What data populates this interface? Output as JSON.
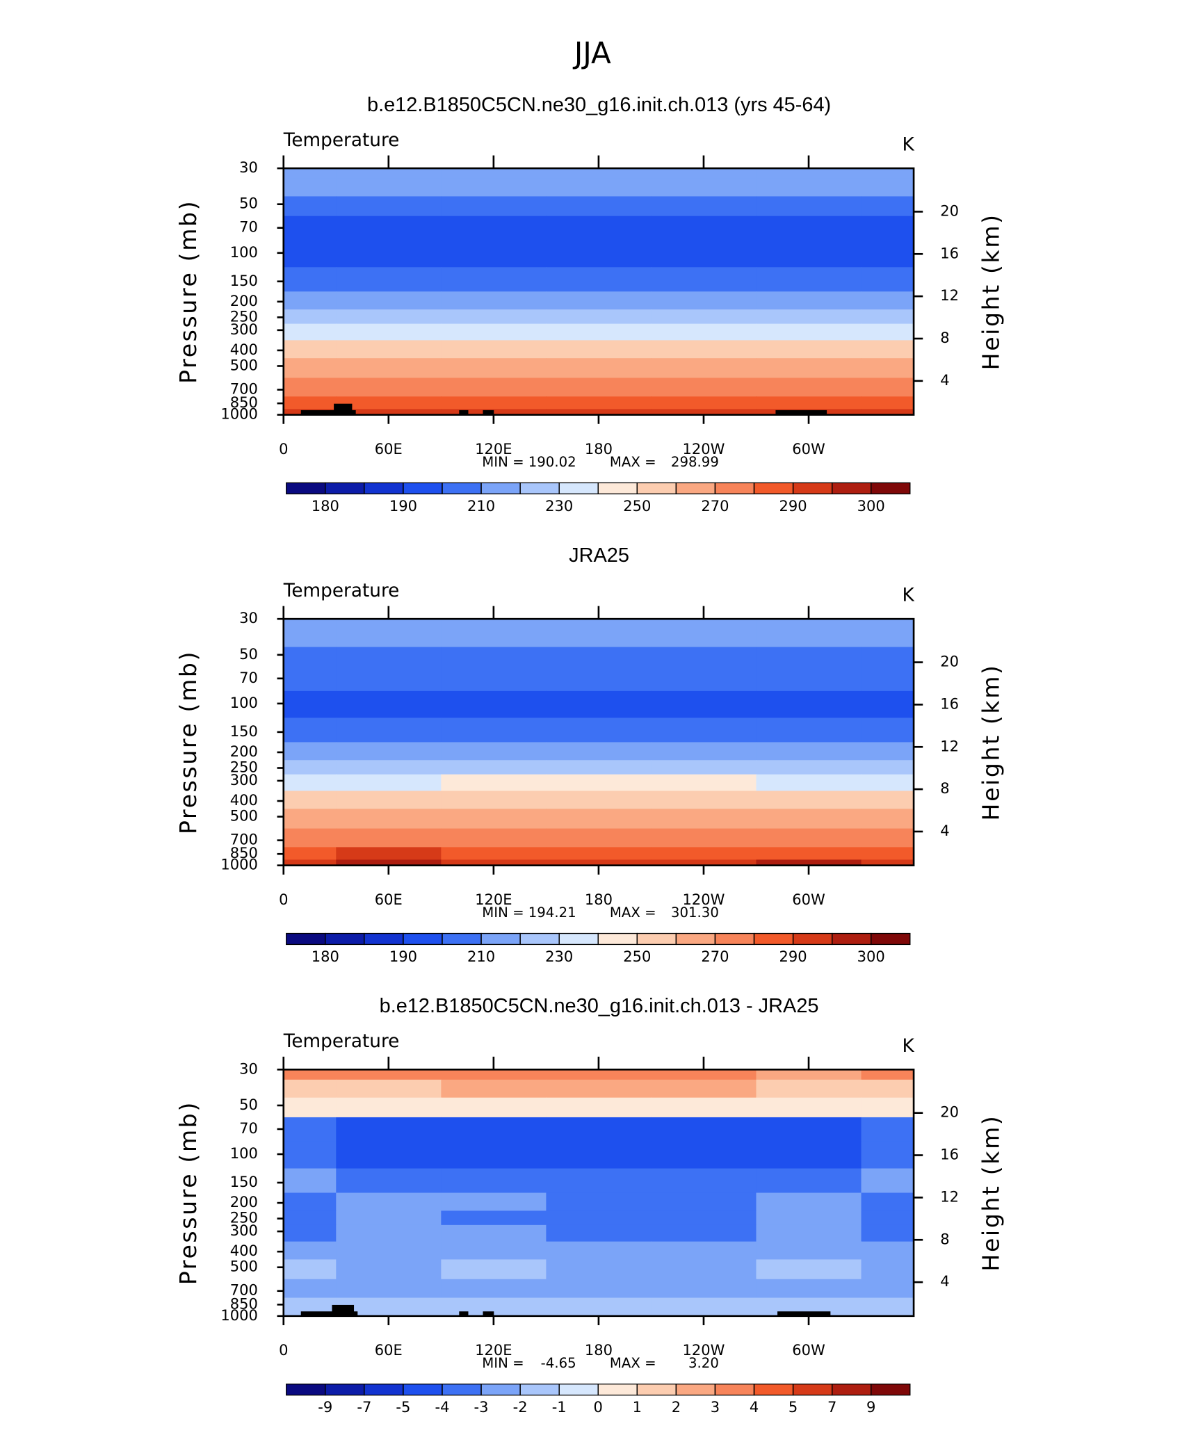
{
  "title": "JJA",
  "chart_data": [
    {
      "type": "contour",
      "title": "b.e12.B1850C5CN.ne30_g16.init.ch.013 (yrs 45-64)",
      "variable": "Temperature",
      "units": "K",
      "ylabel": "Pressure (mb)",
      "y2label": "Height (km)",
      "x": [
        0,
        60,
        120,
        180,
        240,
        300,
        360
      ],
      "y": [
        30,
        40,
        50,
        70,
        100,
        150,
        200,
        250,
        300,
        400,
        500,
        700,
        850,
        1000
      ],
      "values": [
        [
          215,
          215,
          215,
          215,
          215,
          215,
          215
        ],
        [
          212,
          212,
          212,
          212,
          212,
          212,
          212
        ],
        [
          205,
          205,
          205,
          205,
          205,
          205,
          205
        ],
        [
          197,
          197,
          197,
          197,
          197,
          197,
          197
        ],
        [
          195,
          195,
          195,
          195,
          195,
          195,
          195
        ],
        [
          203,
          203,
          203,
          203,
          203,
          203,
          203
        ],
        [
          215,
          215,
          215,
          215,
          215,
          215,
          215
        ],
        [
          228,
          228,
          228,
          228,
          228,
          228,
          228
        ],
        [
          238,
          238,
          238,
          238,
          238,
          238,
          238
        ],
        [
          253,
          253,
          253,
          253,
          253,
          253,
          253
        ],
        [
          263,
          263,
          263,
          263,
          263,
          263,
          263
        ],
        [
          278,
          279,
          278,
          278,
          278,
          278,
          278
        ],
        [
          287,
          288,
          287,
          287,
          287,
          287,
          287
        ],
        [
          293,
          294,
          293,
          293,
          293,
          293,
          293
        ]
      ],
      "xlim": [
        0,
        360
      ],
      "ylim": [
        1000,
        30
      ],
      "y_scale": "log",
      "xticks": [
        0,
        {
          "value": 60,
          "label": "60E"
        },
        {
          "value": 120,
          "label": "120E"
        },
        180,
        {
          "value": 240,
          "label": "120W"
        },
        {
          "value": 300,
          "label": "60W"
        }
      ],
      "yticks": [
        30,
        50,
        70,
        100,
        150,
        200,
        250,
        300,
        400,
        500,
        700,
        850,
        1000
      ],
      "y2lim": [
        0.8,
        24.1
      ],
      "y2ticks": [
        4,
        8,
        12,
        16,
        20
      ],
      "min_label": "MIN =",
      "min": 190.02,
      "max_label": "MAX =",
      "max": 298.99,
      "levels": [
        180,
        185,
        190,
        200,
        210,
        220,
        230,
        240,
        250,
        260,
        270,
        280,
        290,
        295,
        300
      ],
      "colorbar_ticks": [
        180,
        190,
        210,
        230,
        250,
        270,
        290,
        300
      ],
      "colors": [
        "#0a0a80",
        "#0c1ca8",
        "#1233d0",
        "#1e50ee",
        "#3d71f4",
        "#7ba4f8",
        "#a9c6fb",
        "#d6e7fd",
        "#fde9d9",
        "#fccdb0",
        "#faa882",
        "#f7845a",
        "#f25a2a",
        "#d63a18",
        "#ae1e10",
        "#7f0808"
      ]
    },
    {
      "type": "contour",
      "title": "JRA25",
      "variable": "Temperature",
      "units": "K",
      "ylabel": "Pressure (mb)",
      "y2label": "Height (km)",
      "x": [
        0,
        60,
        120,
        180,
        240,
        300,
        360
      ],
      "y": [
        30,
        40,
        50,
        70,
        100,
        150,
        200,
        250,
        300,
        400,
        500,
        700,
        850,
        1000
      ],
      "values": [
        [
          218,
          218,
          218,
          218,
          218,
          218,
          218
        ],
        [
          214,
          214,
          214,
          214,
          214,
          214,
          214
        ],
        [
          208,
          208,
          208,
          208,
          208,
          208,
          208
        ],
        [
          203,
          203,
          202,
          202,
          202,
          203,
          203
        ],
        [
          196,
          196,
          196,
          196,
          196,
          196,
          196
        ],
        [
          205,
          205,
          205,
          205,
          205,
          205,
          205
        ],
        [
          216,
          216,
          216,
          216,
          216,
          216,
          216
        ],
        [
          228,
          228,
          228,
          228,
          228,
          228,
          228
        ],
        [
          239,
          239,
          241,
          241,
          240,
          239,
          239
        ],
        [
          254,
          254,
          254,
          254,
          254,
          254,
          254
        ],
        [
          264,
          264,
          264,
          264,
          264,
          264,
          264
        ],
        [
          279,
          279,
          279,
          279,
          279,
          279,
          279
        ],
        [
          289,
          291,
          289,
          289,
          289,
          289,
          289
        ],
        [
          294,
          296,
          294,
          294,
          294,
          295,
          294
        ]
      ],
      "xlim": [
        0,
        360
      ],
      "ylim": [
        1000,
        30
      ],
      "y_scale": "log",
      "xticks": [
        0,
        {
          "value": 60,
          "label": "60E"
        },
        {
          "value": 120,
          "label": "120E"
        },
        180,
        {
          "value": 240,
          "label": "120W"
        },
        {
          "value": 300,
          "label": "60W"
        }
      ],
      "yticks": [
        30,
        50,
        70,
        100,
        150,
        200,
        250,
        300,
        400,
        500,
        700,
        850,
        1000
      ],
      "y2lim": [
        0.8,
        24.1
      ],
      "y2ticks": [
        4,
        8,
        12,
        16,
        20
      ],
      "min_label": "MIN =",
      "min": 194.21,
      "max_label": "MAX =",
      "max": {
        "value": 301.3,
        "label": "301.30"
      },
      "levels": [
        180,
        185,
        190,
        200,
        210,
        220,
        230,
        240,
        250,
        260,
        270,
        280,
        290,
        295,
        300
      ],
      "colorbar_ticks": [
        180,
        190,
        210,
        230,
        250,
        270,
        290,
        300
      ],
      "colors": [
        "#0a0a80",
        "#0c1ca8",
        "#1233d0",
        "#1e50ee",
        "#3d71f4",
        "#7ba4f8",
        "#a9c6fb",
        "#d6e7fd",
        "#fde9d9",
        "#fccdb0",
        "#faa882",
        "#f7845a",
        "#f25a2a",
        "#d63a18",
        "#ae1e10",
        "#7f0808"
      ]
    },
    {
      "type": "contour",
      "title": "b.e12.B1850C5CN.ne30_g16.init.ch.013 - JRA25",
      "variable": "Temperature",
      "units": "K",
      "ylabel": "Pressure (mb)",
      "y2label": "Height (km)",
      "x": [
        0,
        60,
        120,
        180,
        240,
        300,
        360
      ],
      "y": [
        30,
        40,
        50,
        70,
        100,
        150,
        200,
        250,
        300,
        400,
        500,
        700,
        850,
        1000
      ],
      "values": [
        [
          3.2,
          3.0,
          3.1,
          3.2,
          3.0,
          2.8,
          3.2
        ],
        [
          1.8,
          1.6,
          2.2,
          2.4,
          2.0,
          1.6,
          1.8
        ],
        [
          0.3,
          0.2,
          0.6,
          0.8,
          0.5,
          0.3,
          0.3
        ],
        [
          -3.5,
          -4.2,
          -4.3,
          -4.2,
          -4.3,
          -4.1,
          -3.5
        ],
        [
          -3.6,
          -4.4,
          -4.5,
          -4.6,
          -4.4,
          -4.3,
          -3.7
        ],
        [
          -2.6,
          -3.4,
          -3.5,
          -3.6,
          -3.4,
          -3.3,
          -2.6
        ],
        [
          -3.4,
          -2.7,
          -2.8,
          -3.3,
          -3.2,
          -2.5,
          -3.3
        ],
        [
          -3.3,
          -2.6,
          -3.4,
          -3.5,
          -3.4,
          -2.6,
          -3.2
        ],
        [
          -3.5,
          -2.6,
          -2.8,
          -3.5,
          -3.3,
          -2.7,
          -3.4
        ],
        [
          -2.5,
          -2.4,
          -2.3,
          -2.6,
          -2.7,
          -2.4,
          -3.0
        ],
        [
          -1.8,
          -2.3,
          -1.7,
          -2.2,
          -2.3,
          -1.8,
          -2.5
        ],
        [
          -2.2,
          -2.4,
          -2.5,
          -2.4,
          -2.2,
          -2.3,
          -2.6
        ],
        [
          -2.0,
          -1.6,
          -1.7,
          -1.8,
          -1.9,
          -1.5,
          -1.7
        ],
        [
          -1.4,
          -1.6,
          -1.5,
          -1.7,
          -1.6,
          -1.5,
          -1.6
        ]
      ],
      "xlim": [
        0,
        360
      ],
      "ylim": [
        1000,
        30
      ],
      "y_scale": "log",
      "xticks": [
        0,
        {
          "value": 60,
          "label": "60E"
        },
        {
          "value": 120,
          "label": "120E"
        },
        180,
        {
          "value": 240,
          "label": "120W"
        },
        {
          "value": 300,
          "label": "60W"
        }
      ],
      "yticks": [
        30,
        50,
        70,
        100,
        150,
        200,
        250,
        300,
        400,
        500,
        700,
        850,
        1000
      ],
      "y2lim": [
        0.8,
        24.1
      ],
      "y2ticks": [
        4,
        8,
        12,
        16,
        20
      ],
      "min_label": "MIN =",
      "min": -4.65,
      "max_label": "MAX =",
      "max": {
        "value": 3.2,
        "label": "3.20"
      },
      "levels": [
        -9,
        -7,
        -5,
        -4,
        -3,
        -2,
        -1,
        0,
        1,
        2,
        3,
        4,
        5,
        7,
        9
      ],
      "colorbar_ticks": [
        -9,
        -7,
        -5,
        -4,
        -3,
        -2,
        -1,
        0,
        1,
        2,
        3,
        4,
        5,
        7,
        9
      ],
      "colors": [
        "#0a0a80",
        "#0c1ca8",
        "#1233d0",
        "#1e50ee",
        "#3d71f4",
        "#7ba4f8",
        "#a9c6fb",
        "#d6e7fd",
        "#fde9d9",
        "#fccdb0",
        "#faa882",
        "#f7845a",
        "#f25a2a",
        "#d63a18",
        "#ae1e10",
        "#7f0808"
      ]
    }
  ]
}
